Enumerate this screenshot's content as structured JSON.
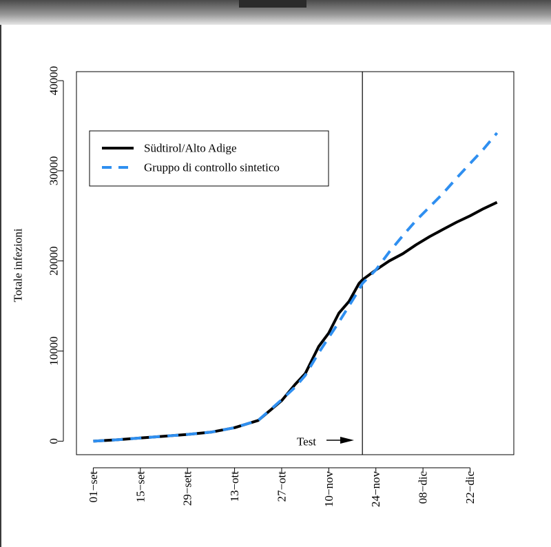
{
  "chart_data": {
    "type": "line",
    "title": "",
    "xlabel": "",
    "ylabel": "Totale infezioni",
    "x_tick_labels": [
      "01−set",
      "15−set",
      "29−sett",
      "13−ott",
      "27−ott",
      "10−nov",
      "24−nov",
      "08−dic",
      "22−dic"
    ],
    "x_tick_day_index": [
      0,
      14,
      28,
      42,
      56,
      70,
      84,
      98,
      112
    ],
    "y_ticks": [
      0,
      10000,
      20000,
      30000,
      40000
    ],
    "ylim": [
      -1500,
      41000
    ],
    "xlim_day_index": [
      -5,
      125
    ],
    "grid": false,
    "legend_position": "top-left",
    "treatment_day_index": 80,
    "annotation": "Test",
    "series": [
      {
        "name": "Südtirol/Alto Adige",
        "color": "#000000",
        "dash": "solid",
        "x": [
          0,
          7,
          14,
          21,
          28,
          35,
          42,
          49,
          56,
          60,
          63,
          67,
          70,
          73,
          76,
          79,
          80,
          84,
          88,
          92,
          96,
          100,
          104,
          108,
          112,
          116,
          120
        ],
        "y": [
          0,
          150,
          350,
          550,
          750,
          1000,
          1500,
          2300,
          4500,
          6300,
          7500,
          10500,
          12000,
          14200,
          15500,
          17500,
          17900,
          19000,
          20000,
          20800,
          21800,
          22700,
          23500,
          24300,
          25000,
          25800,
          26500
        ]
      },
      {
        "name": "Gruppo di controllo sintetico",
        "color": "#2f8ff0",
        "dash": "dashed",
        "x": [
          0,
          7,
          14,
          21,
          28,
          35,
          42,
          49,
          56,
          60,
          63,
          67,
          70,
          73,
          76,
          79,
          80,
          84,
          88,
          92,
          96,
          100,
          104,
          108,
          112,
          116,
          120
        ],
        "y": [
          0,
          150,
          350,
          550,
          750,
          1000,
          1500,
          2300,
          4600,
          6000,
          7300,
          9800,
          11500,
          13200,
          15000,
          16800,
          17500,
          19000,
          21000,
          22800,
          24500,
          26000,
          27500,
          29200,
          30800,
          32400,
          34200
        ]
      }
    ]
  }
}
